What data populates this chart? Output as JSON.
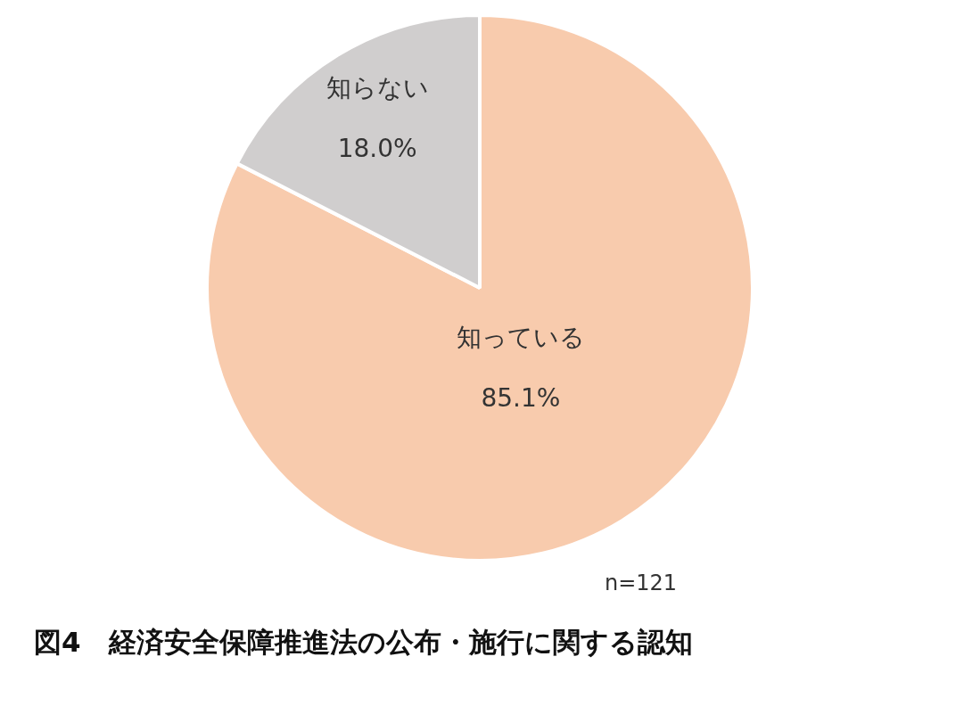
{
  "chart_data": {
    "type": "pie",
    "title": "図4　経済安全保障推進法の公布・施行に関する認知",
    "categories": [
      "知っている",
      "知らない"
    ],
    "values": [
      85.1,
      18.0
    ],
    "value_labels": [
      "85.1%",
      "18.0%"
    ],
    "colors": [
      "#f8cbad",
      "#d0cece"
    ],
    "annotations": [
      "n=121"
    ]
  }
}
